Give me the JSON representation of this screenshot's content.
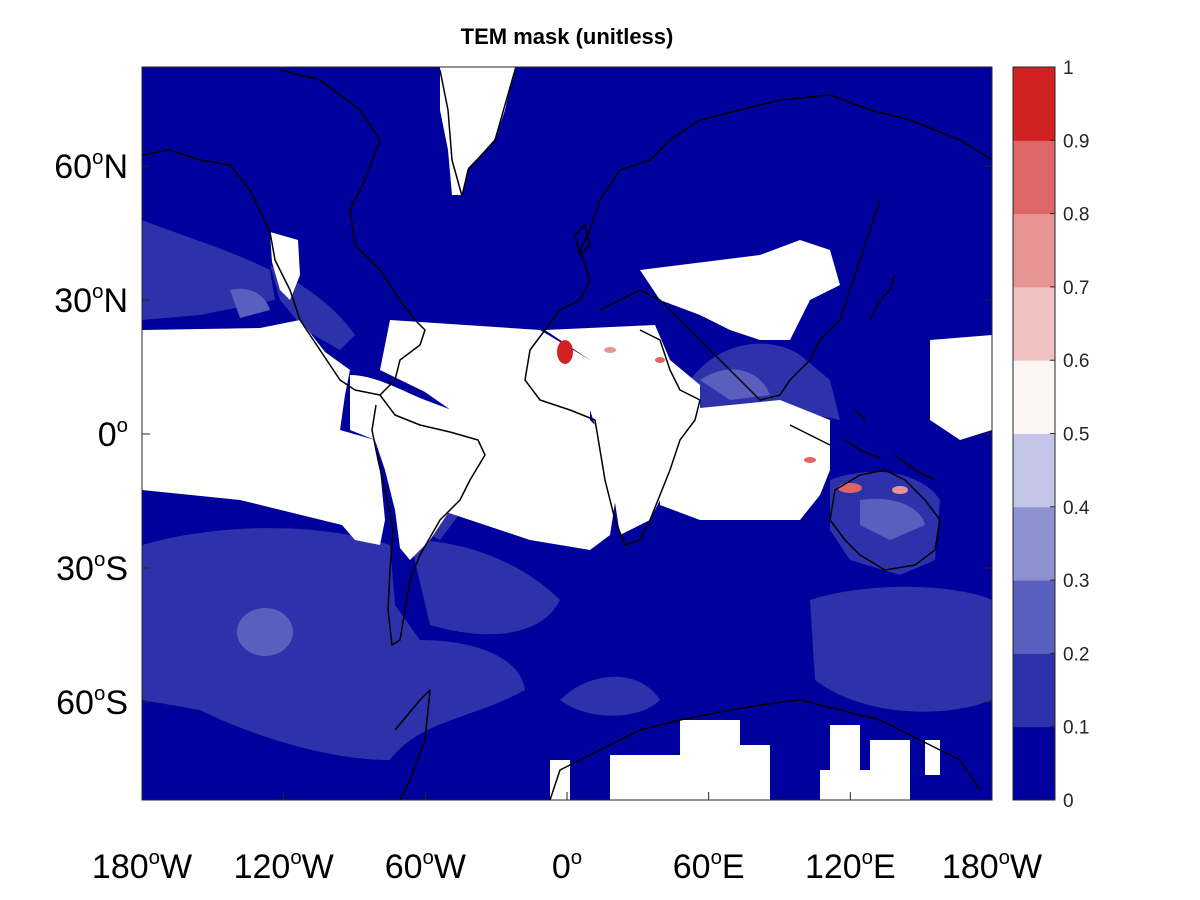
{
  "title": "TEM mask (unitless)",
  "map": {
    "projection": "equirectangular",
    "ocean_base_color": "#00009c",
    "masked_color": "#ffffff",
    "coastline_color": "#000000",
    "lat_ticks": [
      {
        "value": 60,
        "num": "60",
        "deg": "o",
        "hemi": "N"
      },
      {
        "value": 30,
        "num": "30",
        "deg": "o",
        "hemi": "N"
      },
      {
        "value": 0,
        "num": "0",
        "deg": "o",
        "hemi": ""
      },
      {
        "value": -30,
        "num": "30",
        "deg": "o",
        "hemi": "S"
      },
      {
        "value": -60,
        "num": "60",
        "deg": "o",
        "hemi": "S"
      }
    ],
    "lon_ticks": [
      {
        "value": -180,
        "num": "180",
        "deg": "o",
        "hemi": "W"
      },
      {
        "value": -120,
        "num": "120",
        "deg": "o",
        "hemi": "W"
      },
      {
        "value": -60,
        "num": "60",
        "deg": "o",
        "hemi": "W"
      },
      {
        "value": 0,
        "num": "0",
        "deg": "o",
        "hemi": ""
      },
      {
        "value": 60,
        "num": "60",
        "deg": "o",
        "hemi": "E"
      },
      {
        "value": 120,
        "num": "120",
        "deg": "o",
        "hemi": "E"
      },
      {
        "value": 180,
        "num": "180",
        "deg": "o",
        "hemi": "W"
      }
    ]
  },
  "colorbar": {
    "min": 0,
    "max": 1,
    "tick_labels": [
      "0",
      "0.1",
      "0.2",
      "0.3",
      "0.4",
      "0.5",
      "0.6",
      "0.7",
      "0.8",
      "0.9",
      "1"
    ],
    "colors": [
      "#00009c",
      "#2e32aa",
      "#5a5fbe",
      "#8d91d2",
      "#c4c6e8",
      "#fdf4f4",
      "#f2c2c2",
      "#e89494",
      "#de6666",
      "#d02222"
    ]
  }
}
